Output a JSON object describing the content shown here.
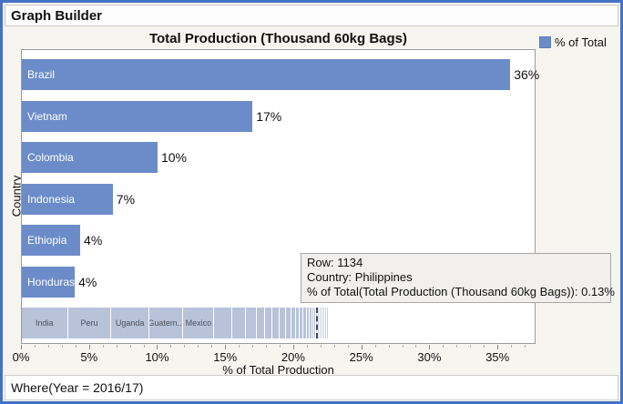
{
  "window": {
    "title": "Graph Builder",
    "filter_text": "Where(Year = 2016/17)"
  },
  "colors": {
    "frame_blue": "#4472c4",
    "bar_blue": "#6b8cc8",
    "others_fill": "#b8c3da",
    "others_fill_light": "#ccd5e5",
    "background_beige": "#f7f5f0"
  },
  "legend": {
    "label": "% of Total",
    "swatch_color": "#6b8cc8"
  },
  "tooltip": {
    "lines": [
      "Row: 1134",
      "Country: Philippines",
      "% of Total(Total Production (Thousand 60kg Bags)): 0.13%"
    ]
  },
  "chart_data": {
    "type": "bar",
    "orientation": "horizontal",
    "title": "Total Production (Thousand 60kg Bags)",
    "xlabel": "% of Total Production",
    "ylabel": "Country",
    "xlim": [
      0,
      37.8
    ],
    "grid": false,
    "legend_position": "top-right",
    "categories": [
      "Brazil",
      "Vietnam",
      "Colombia",
      "Indonesia",
      "Ethiopia",
      "Honduras"
    ],
    "values": [
      36,
      17,
      10,
      6.7,
      4.3,
      3.9
    ],
    "value_labels": [
      "36%",
      "17%",
      "10%",
      "7%",
      "4%",
      "4%"
    ],
    "xticks_major": [
      {
        "v": 0,
        "label": "0%"
      },
      {
        "v": 5,
        "label": "5%"
      },
      {
        "v": 10,
        "label": "10%"
      },
      {
        "v": 15,
        "label": "15%"
      },
      {
        "v": 20,
        "label": "20%"
      },
      {
        "v": 25,
        "label": "25%"
      },
      {
        "v": 30,
        "label": "30%"
      },
      {
        "v": 35,
        "label": "35%"
      }
    ],
    "others_row": {
      "description": "remaining countries stacked by % of total",
      "marker_value": 21.7,
      "segments": [
        {
          "label": "India",
          "value": 3.4
        },
        {
          "label": "Peru",
          "value": 3.2
        },
        {
          "label": "Uganda",
          "value": 2.8
        },
        {
          "label": "Guatem...",
          "value": 2.5
        },
        {
          "label": "Mexico",
          "value": 2.3
        },
        {
          "value": 1.3
        },
        {
          "value": 1.0
        },
        {
          "value": 0.8
        },
        {
          "value": 0.65
        },
        {
          "value": 0.55
        },
        {
          "value": 0.5
        },
        {
          "value": 0.45
        },
        {
          "value": 0.4
        },
        {
          "value": 0.35
        },
        {
          "value": 0.3
        },
        {
          "value": 0.27
        },
        {
          "value": 0.24
        },
        {
          "value": 0.21
        },
        {
          "value": 0.18
        },
        {
          "value": 0.16
        },
        {
          "value": 0.14
        },
        {
          "value": 0.12,
          "light": true
        },
        {
          "value": 0.1,
          "light": true
        },
        {
          "value": 0.09,
          "light": true
        },
        {
          "value": 0.08,
          "light": true
        },
        {
          "value": 0.07,
          "light": true
        },
        {
          "value": 0.06,
          "light": true
        },
        {
          "value": 0.05,
          "light": true
        }
      ]
    }
  }
}
